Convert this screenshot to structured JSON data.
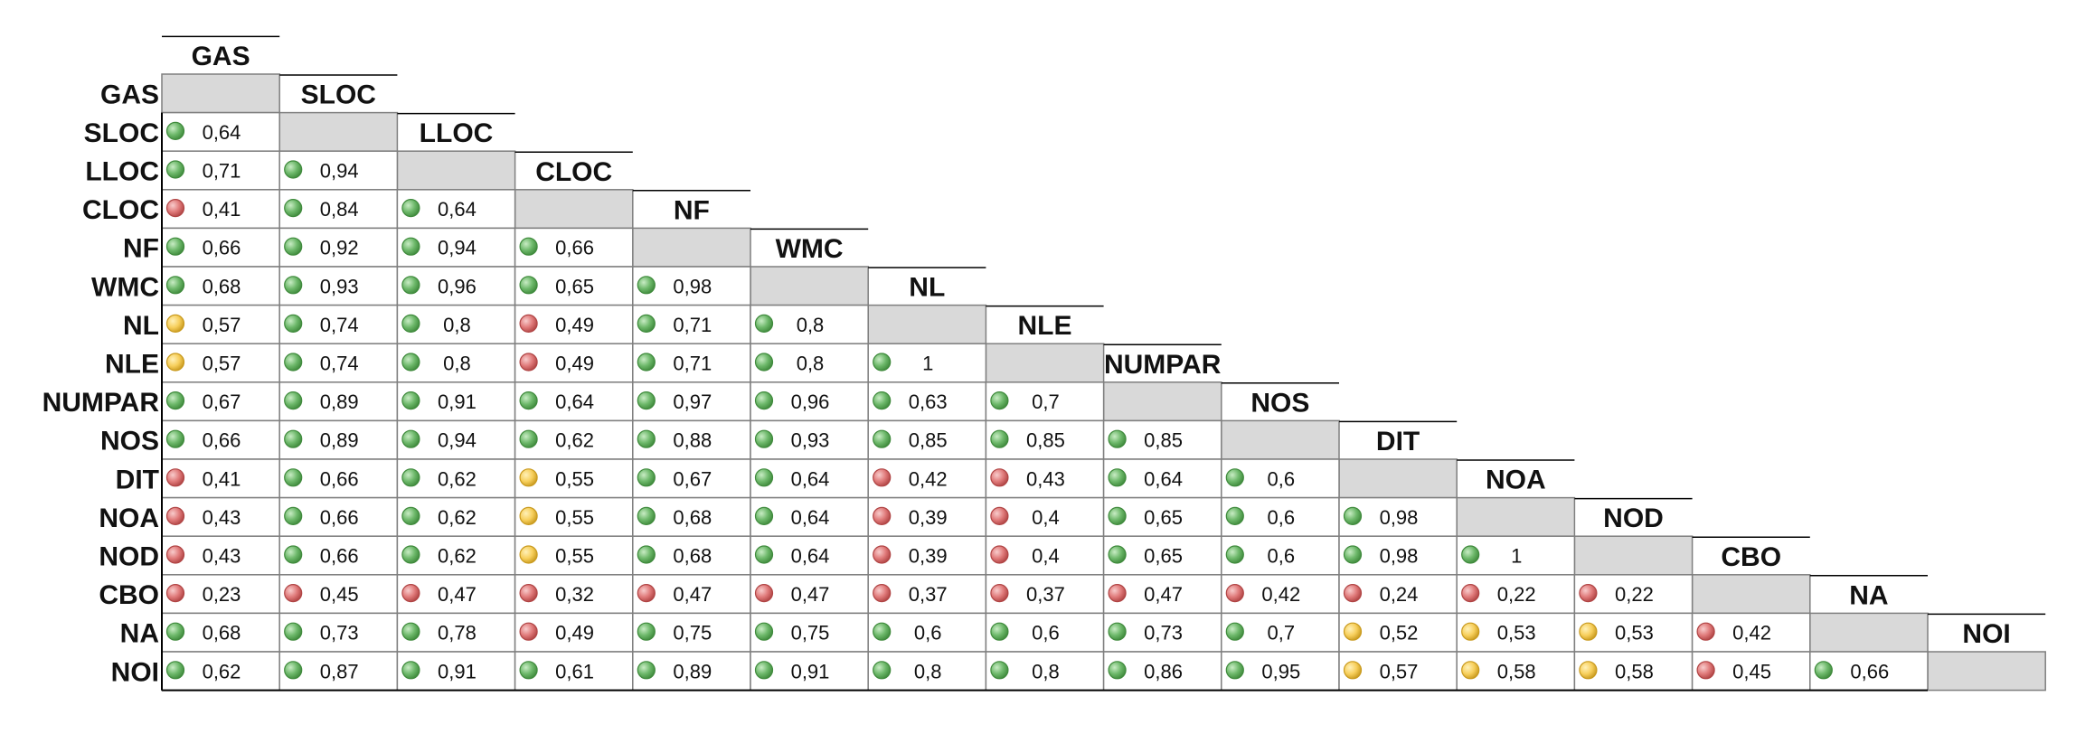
{
  "chart_data": {
    "type": "heatmap",
    "title": "",
    "variables": [
      "GAS",
      "SLOC",
      "LLOC",
      "CLOC",
      "NF",
      "WMC",
      "NL",
      "NLE",
      "NUMPAR",
      "NOS",
      "DIT",
      "NOA",
      "NOD",
      "CBO",
      "NA",
      "NOI"
    ],
    "rows": [
      [],
      [
        "0,64"
      ],
      [
        "0,71",
        "0,94"
      ],
      [
        "0,41",
        "0,84",
        "0,64"
      ],
      [
        "0,66",
        "0,92",
        "0,94",
        "0,66"
      ],
      [
        "0,68",
        "0,93",
        "0,96",
        "0,65",
        "0,98"
      ],
      [
        "0,57",
        "0,74",
        "0,8",
        "0,49",
        "0,71",
        "0,8"
      ],
      [
        "0,57",
        "0,74",
        "0,8",
        "0,49",
        "0,71",
        "0,8",
        "1"
      ],
      [
        "0,67",
        "0,89",
        "0,91",
        "0,64",
        "0,97",
        "0,96",
        "0,63",
        "0,7"
      ],
      [
        "0,66",
        "0,89",
        "0,94",
        "0,62",
        "0,88",
        "0,93",
        "0,85",
        "0,85",
        "0,85"
      ],
      [
        "0,41",
        "0,66",
        "0,62",
        "0,55",
        "0,67",
        "0,64",
        "0,42",
        "0,43",
        "0,64",
        "0,6"
      ],
      [
        "0,43",
        "0,66",
        "0,62",
        "0,55",
        "0,68",
        "0,64",
        "0,39",
        "0,4",
        "0,65",
        "0,6",
        "0,98"
      ],
      [
        "0,43",
        "0,66",
        "0,62",
        "0,55",
        "0,68",
        "0,64",
        "0,39",
        "0,4",
        "0,65",
        "0,6",
        "0,98",
        "1"
      ],
      [
        "0,23",
        "0,45",
        "0,47",
        "0,32",
        "0,47",
        "0,47",
        "0,37",
        "0,37",
        "0,47",
        "0,42",
        "0,24",
        "0,22",
        "0,22"
      ],
      [
        "0,68",
        "0,73",
        "0,78",
        "0,49",
        "0,75",
        "0,75",
        "0,6",
        "0,6",
        "0,73",
        "0,7",
        "0,52",
        "0,53",
        "0,53",
        "0,42"
      ],
      [
        "0,62",
        "0,87",
        "0,91",
        "0,61",
        "0,89",
        "0,91",
        "0,8",
        "0,8",
        "0,86",
        "0,95",
        "0,57",
        "0,58",
        "0,58",
        "0,45",
        "0,66"
      ]
    ],
    "indicator_thresholds": {
      "green_min": 0.6,
      "yellow_min": 0.5
    },
    "colors": {
      "green": "#6db86a",
      "green_dark": "#3f8a3c",
      "yellow": "#f7cf5c",
      "yellow_dark": "#c99a1e",
      "red": "#e07a7a",
      "red_dark": "#b04444",
      "diagonal": "#d9d9d9",
      "grid": "#7f7f7f"
    }
  }
}
